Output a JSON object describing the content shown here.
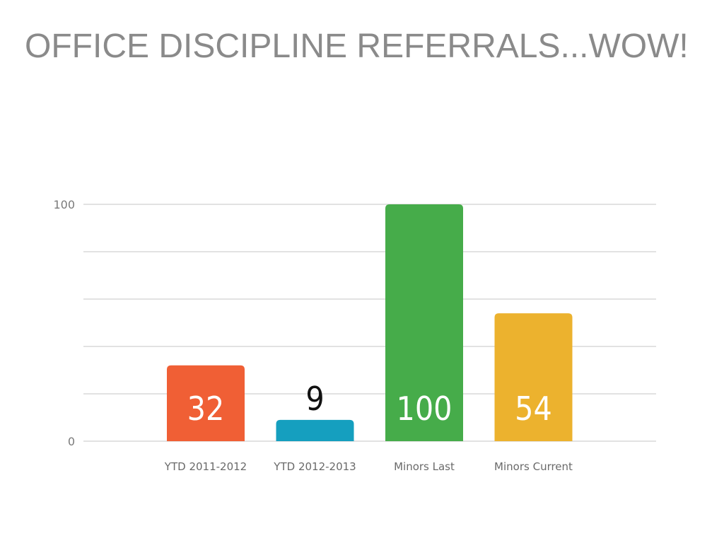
{
  "slide": {
    "title": "OFFICE DISCIPLINE REFERRALS...WOW!"
  },
  "chart_data": {
    "type": "bar",
    "title": "",
    "xlabel": "",
    "ylabel": "",
    "categories": [
      "YTD 2011-2012",
      "YTD 2012-2013",
      "Minors Last",
      "Minors Current"
    ],
    "values": [
      32,
      9,
      100,
      54
    ],
    "colors": [
      "#f05f35",
      "#159fbf",
      "#46ac4a",
      "#ecb22e"
    ],
    "data_label_colors": [
      "#ffffff",
      "#111111",
      "#ffffff",
      "#ffffff"
    ],
    "ylim": [
      0,
      100
    ],
    "y_ticks": [
      0,
      100
    ],
    "gridlines": [
      0,
      20,
      40,
      60,
      80,
      100
    ],
    "grid": true,
    "legend": "none",
    "data_labels": true
  }
}
